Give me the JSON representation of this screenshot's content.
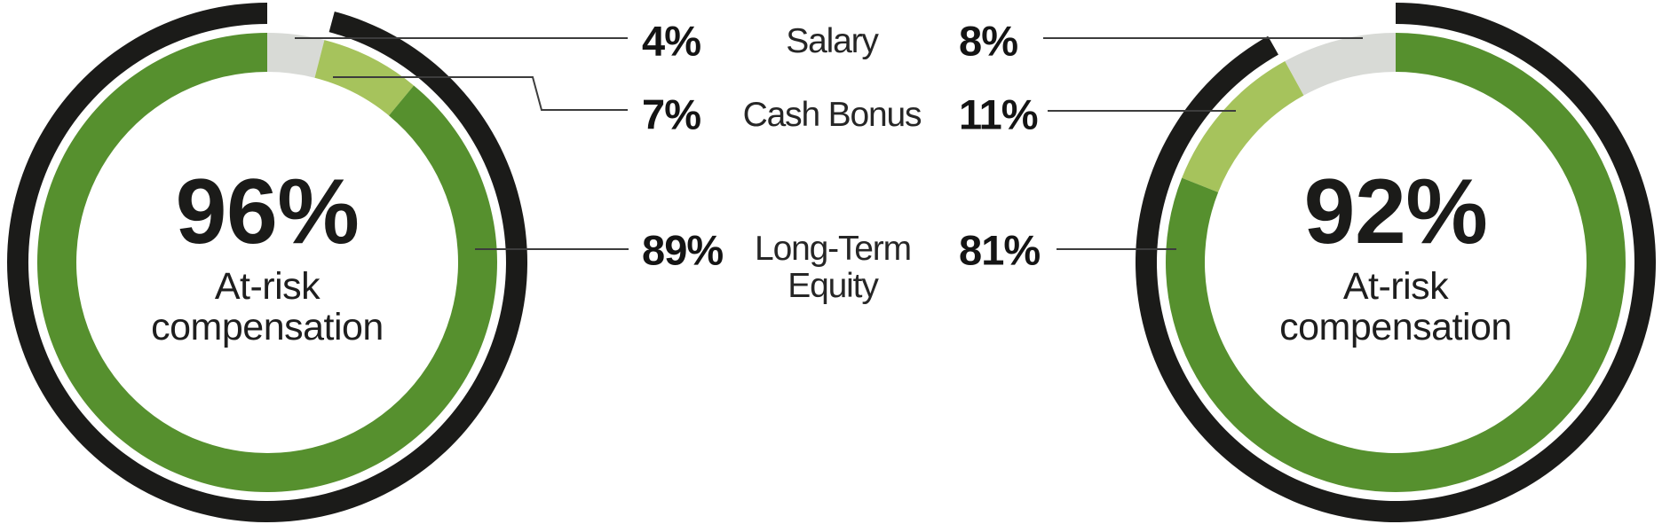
{
  "page": {
    "background": "#FFFFFF"
  },
  "chart_data": [
    {
      "type": "donut",
      "position": "left",
      "center_value": "96%",
      "center_label_line1": "At-risk",
      "center_label_line2": "compensation",
      "direction": "clockwise",
      "segments": [
        {
          "label": "Salary",
          "value": 4,
          "color": "#D8DAD6"
        },
        {
          "label": "Cash Bonus",
          "value": 7,
          "color": "#A6C35C"
        },
        {
          "label": "Long-Term Equity",
          "value": 89,
          "color": "#56902E"
        }
      ],
      "outer_arc": {
        "at_risk_pct": 96,
        "color": "#1B1B19"
      }
    },
    {
      "type": "donut",
      "position": "right",
      "center_value": "92%",
      "center_label_line1": "At-risk",
      "center_label_line2": "compensation",
      "direction": "counterclockwise",
      "segments": [
        {
          "label": "Salary",
          "value": 8,
          "color": "#D8DAD6"
        },
        {
          "label": "Cash Bonus",
          "value": 11,
          "color": "#A6C35C"
        },
        {
          "label": "Long-Term Equity",
          "value": 81,
          "color": "#56902E"
        }
      ],
      "outer_arc": {
        "at_risk_pct": 92,
        "color": "#1B1B19"
      }
    }
  ],
  "legend": {
    "rows": [
      {
        "left_value": "4%",
        "label": "Salary",
        "right_value": "8%"
      },
      {
        "left_value": "7%",
        "label": "Cash Bonus",
        "right_value": "11%"
      },
      {
        "left_value": "89%",
        "label_line1": "Long-Term",
        "label_line2": "Equity",
        "right_value": "81%"
      }
    ]
  },
  "style_colors": {
    "leader_line": "#3C3C3C",
    "outer_ring_black": "#1B1B19",
    "dark_green": "#56902E",
    "light_green": "#A6C35C",
    "salary_gray": "#D8DAD6"
  }
}
